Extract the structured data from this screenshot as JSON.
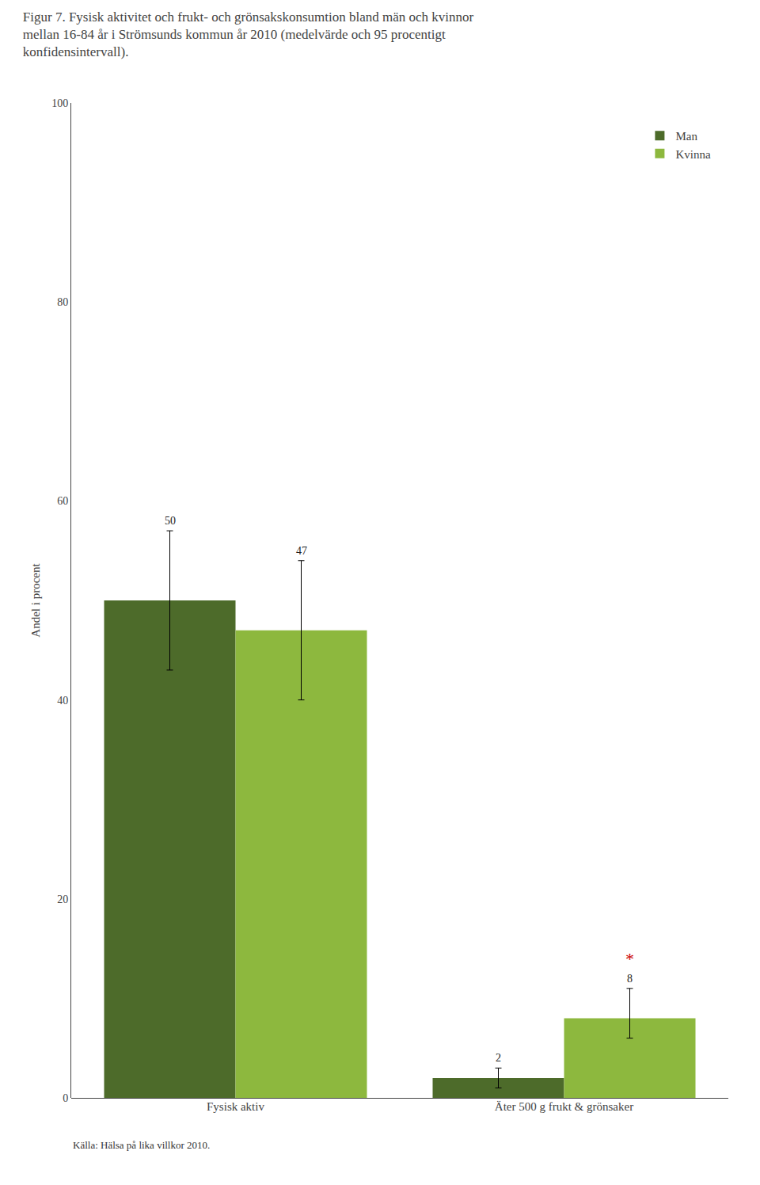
{
  "chart_data": {
    "type": "bar",
    "title": "Figur 7. Fysisk aktivitet och frukt- och grönsakskonsumtion bland män och kvinnor mellan 16-84 år i Strömsunds kommun år 2010 (medelvärde och 95 procentigt konfidensintervall).",
    "categories": [
      "Fysisk aktiv",
      "Äter 500 g frukt & grönsaker"
    ],
    "series": [
      {
        "name": "Man",
        "color": "#4d6b2a",
        "values": [
          50,
          2
        ],
        "error_low": [
          7,
          1
        ],
        "error_high": [
          7,
          1
        ]
      },
      {
        "name": "Kvinna",
        "color": "#8db83e",
        "values": [
          47,
          8
        ],
        "error_low": [
          7,
          2
        ],
        "error_high": [
          7,
          3
        ]
      }
    ],
    "ylabel": "Andel i procent",
    "ylim": [
      0,
      100
    ],
    "yticks": [
      0,
      20,
      40,
      60,
      80,
      100
    ],
    "grid": false,
    "legend": "upper right",
    "data_labels": true,
    "annotations": [
      {
        "text": "*",
        "category": "Äter 500 g frukt & grönsaker",
        "series": "Kvinna",
        "color": "#cc0000"
      },
      {
        "text": "Källa: Hälsa på lika villkor 2010."
      }
    ]
  }
}
